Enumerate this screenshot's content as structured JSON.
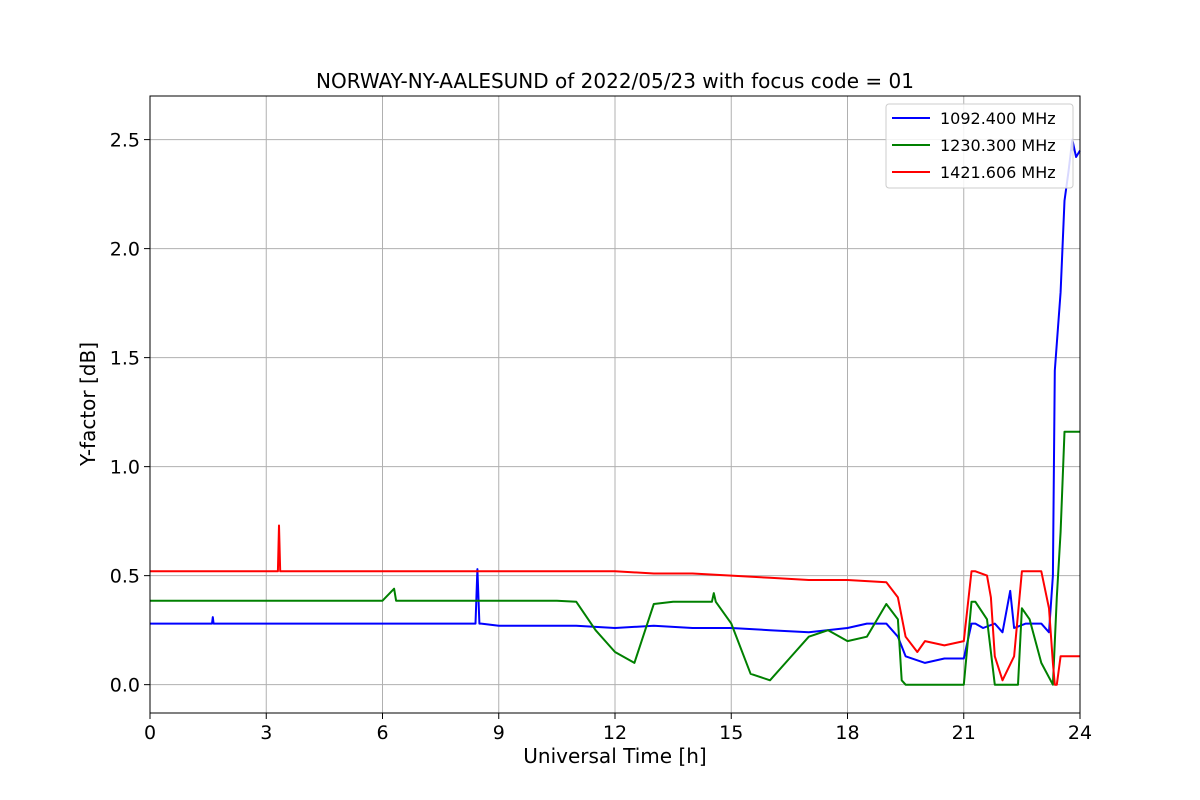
{
  "chart_data": {
    "type": "line",
    "title": "NORWAY-NY-AALESUND of 2022/05/23 with focus code = 01",
    "xlabel": "Universal Time [h]",
    "ylabel": "Y-factor [dB]",
    "xlim": [
      0,
      24
    ],
    "ylim": [
      -0.13,
      2.7
    ],
    "xticks": [
      0,
      3,
      6,
      9,
      12,
      15,
      18,
      21,
      24
    ],
    "xtick_labels": [
      "0",
      "3",
      "6",
      "9",
      "12",
      "15",
      "18",
      "21",
      "24"
    ],
    "yticks": [
      0.0,
      0.5,
      1.0,
      1.5,
      2.0,
      2.5
    ],
    "ytick_labels": [
      "0.0",
      "0.5",
      "1.0",
      "1.5",
      "2.0",
      "2.5"
    ],
    "grid": true,
    "legend_position": "top-right",
    "series": [
      {
        "name": "1092.400 MHz",
        "color": "#0000ff",
        "x": [
          0,
          1.6,
          1.62,
          1.64,
          3,
          6,
          8.4,
          8.45,
          8.5,
          8.55,
          9,
          10.5,
          11,
          12,
          13,
          14,
          15,
          16,
          17,
          18,
          18.5,
          19,
          19.3,
          19.5,
          20,
          20.5,
          21,
          21.2,
          21.3,
          21.5,
          21.8,
          22,
          22.2,
          22.3,
          22.6,
          23,
          23.2,
          23.3,
          23.35,
          23.5,
          23.6,
          23.7,
          23.8,
          23.9,
          24
        ],
        "y": [
          0.28,
          0.28,
          0.31,
          0.28,
          0.28,
          0.28,
          0.28,
          0.53,
          0.28,
          0.28,
          0.27,
          0.27,
          0.27,
          0.26,
          0.27,
          0.26,
          0.26,
          0.25,
          0.24,
          0.26,
          0.28,
          0.28,
          0.22,
          0.13,
          0.1,
          0.12,
          0.12,
          0.28,
          0.28,
          0.26,
          0.28,
          0.24,
          0.43,
          0.26,
          0.28,
          0.28,
          0.24,
          0.5,
          1.44,
          1.8,
          2.22,
          2.35,
          2.5,
          2.42,
          2.45
        ]
      },
      {
        "name": "1230.300 MHz",
        "color": "#008000",
        "x": [
          0,
          6,
          6.3,
          6.35,
          6.4,
          9,
          10.5,
          11,
          11.5,
          12,
          12.5,
          13,
          13.5,
          14,
          14.5,
          14.55,
          14.6,
          15,
          15.5,
          16,
          16.5,
          17,
          17.5,
          18,
          18.5,
          19,
          19.3,
          19.4,
          19.5,
          20,
          21,
          21.2,
          21.3,
          21.6,
          21.8,
          22.4,
          22.5,
          22.7,
          23,
          23.3,
          23.4,
          23.5,
          23.6,
          23.7,
          24
        ],
        "y": [
          0.385,
          0.385,
          0.44,
          0.385,
          0.385,
          0.385,
          0.385,
          0.38,
          0.25,
          0.15,
          0.1,
          0.37,
          0.38,
          0.38,
          0.38,
          0.42,
          0.38,
          0.28,
          0.05,
          0.02,
          0.12,
          0.22,
          0.25,
          0.2,
          0.22,
          0.37,
          0.3,
          0.02,
          0.0,
          0.0,
          0.0,
          0.38,
          0.38,
          0.3,
          0.0,
          0.0,
          0.35,
          0.3,
          0.1,
          0.0,
          0.4,
          0.7,
          1.16,
          1.16,
          1.16
        ]
      },
      {
        "name": "1421.606 MHz",
        "color": "#ff0000",
        "x": [
          0,
          3.3,
          3.33,
          3.36,
          5,
          9,
          11,
          12,
          13,
          14,
          15,
          16,
          17,
          18,
          19,
          19.3,
          19.5,
          19.8,
          20,
          20.5,
          21,
          21.2,
          21.3,
          21.6,
          21.7,
          21.8,
          22,
          22.3,
          22.5,
          22.7,
          23,
          23.2,
          23.3,
          23.35,
          23.4,
          23.5,
          24
        ],
        "y": [
          0.52,
          0.52,
          0.73,
          0.52,
          0.52,
          0.52,
          0.52,
          0.52,
          0.51,
          0.51,
          0.5,
          0.49,
          0.48,
          0.48,
          0.47,
          0.4,
          0.22,
          0.15,
          0.2,
          0.18,
          0.2,
          0.52,
          0.52,
          0.5,
          0.4,
          0.13,
          0.02,
          0.13,
          0.52,
          0.52,
          0.52,
          0.35,
          0.1,
          0.0,
          0.0,
          0.13,
          0.13
        ]
      }
    ]
  }
}
